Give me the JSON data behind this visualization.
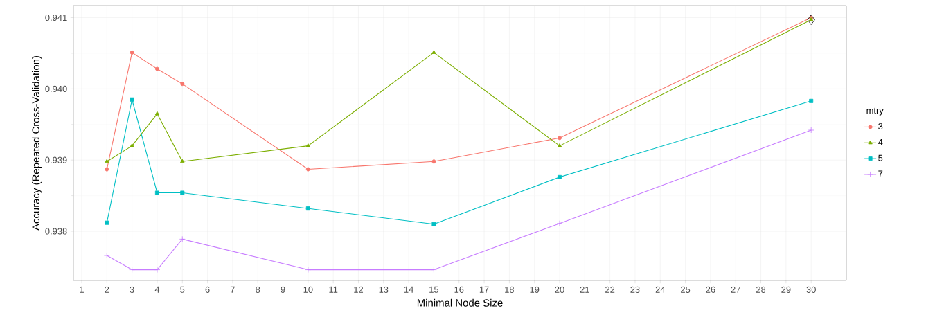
{
  "chart_data": {
    "type": "line",
    "xlabel": "Minimal Node Size",
    "ylabel": "Accuracy (Repeated Cross-Validation)",
    "legend_title": "mtry",
    "legend": "right",
    "grid": true,
    "xlim": [
      0.67,
      31.4
    ],
    "ylim": [
      0.93731,
      0.94117
    ],
    "xticks": [
      1,
      2,
      3,
      4,
      5,
      6,
      7,
      8,
      9,
      10,
      11,
      12,
      13,
      14,
      15,
      16,
      17,
      18,
      19,
      20,
      21,
      22,
      23,
      24,
      25,
      26,
      27,
      28,
      29,
      30
    ],
    "yticks": [
      {
        "value": 0.938,
        "label": "0.938"
      },
      {
        "value": 0.939,
        "label": "0.939"
      },
      {
        "value": 0.94,
        "label": "0.940"
      },
      {
        "value": 0.941,
        "label": "0.941"
      }
    ],
    "x": [
      2,
      3,
      4,
      5,
      10,
      15,
      20,
      30
    ],
    "series": [
      {
        "name": "3",
        "color": "#f8766d",
        "marker": "circle",
        "values": [
          0.93887,
          0.94051,
          0.94028,
          0.94007,
          0.93887,
          0.93898,
          0.93931,
          0.941
        ]
      },
      {
        "name": "4",
        "color": "#7cae00",
        "marker": "triangle",
        "values": [
          0.93898,
          0.9392,
          0.93965,
          0.93898,
          0.9392,
          0.94051,
          0.9392,
          0.94097
        ]
      },
      {
        "name": "5",
        "color": "#00bfc4",
        "marker": "square",
        "values": [
          0.93812,
          0.93985,
          0.93854,
          0.93854,
          0.93832,
          0.9381,
          0.93876,
          0.93983
        ]
      },
      {
        "name": "7",
        "color": "#c77cff",
        "marker": "cross",
        "values": [
          0.93766,
          0.93746,
          0.93746,
          0.93789,
          0.93746,
          0.93746,
          0.93811,
          0.93942
        ]
      },
      {
        "type": "scatter",
        "color": "#000000",
        "marker": "diamond",
        "x": [
          30
        ],
        "values": [
          0.94097
        ]
      }
    ]
  }
}
